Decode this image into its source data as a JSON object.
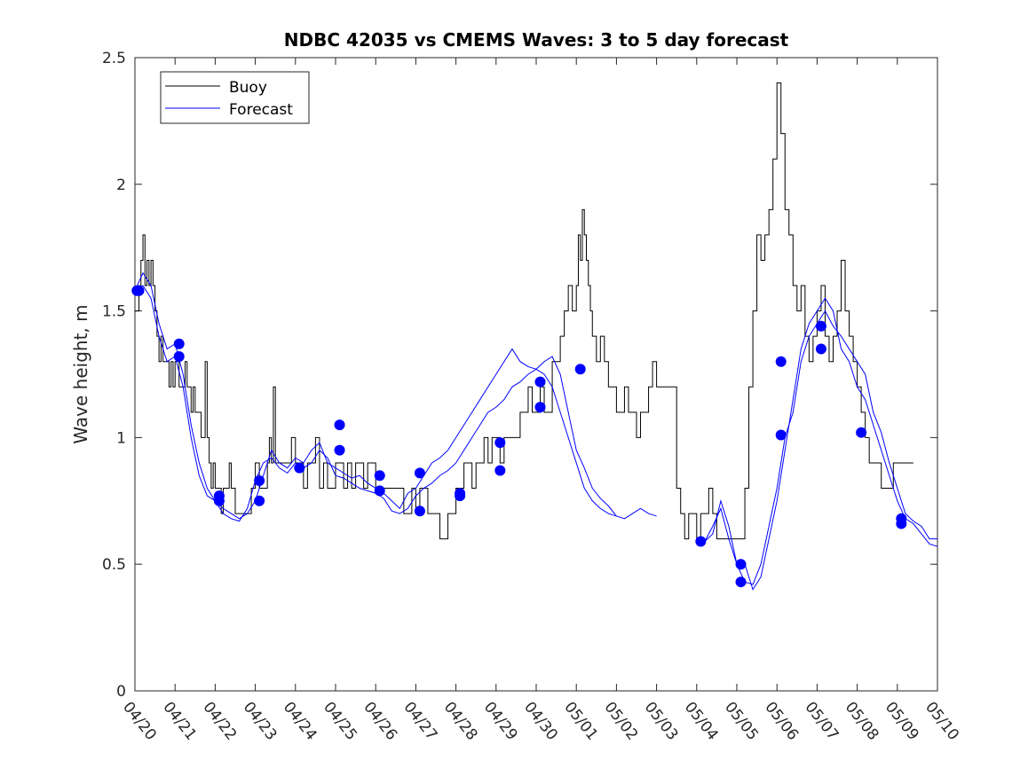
{
  "chart_data": {
    "type": "line",
    "title": "NDBC 42035 vs CMEMS Waves: 3 to 5 day forecast",
    "xlabel": "",
    "ylabel": "Wave height, m",
    "xlim": [
      "04/20",
      "05/10"
    ],
    "ylim": [
      0,
      2.5
    ],
    "x_ticks": [
      "04/20",
      "04/21",
      "04/22",
      "04/23",
      "04/24",
      "04/25",
      "04/26",
      "04/27",
      "04/28",
      "04/29",
      "04/30",
      "05/01",
      "05/02",
      "05/03",
      "05/04",
      "05/05",
      "05/06",
      "05/07",
      "05/08",
      "05/09",
      "05/10"
    ],
    "y_ticks": [
      "0",
      "0.5",
      "1",
      "1.5",
      "2",
      "2.5"
    ],
    "grid": false,
    "legend": {
      "position": "top-left",
      "entries": [
        "Buoy",
        "Forecast"
      ]
    },
    "colors": {
      "buoy": "#000000",
      "forecast": "#0000ff"
    },
    "series": [
      {
        "name": "Buoy",
        "kind": "step",
        "x_day_offset": [
          0,
          0.1,
          0.15,
          0.2,
          0.25,
          0.3,
          0.35,
          0.4,
          0.45,
          0.5,
          0.55,
          0.6,
          0.65,
          0.7,
          0.75,
          0.8,
          0.85,
          0.9,
          0.95,
          1.0,
          1.05,
          1.1,
          1.15,
          1.2,
          1.25,
          1.3,
          1.35,
          1.4,
          1.45,
          1.5,
          1.55,
          1.6,
          1.65,
          1.7,
          1.75,
          1.8,
          1.85,
          1.9,
          1.95,
          2.0,
          2.05,
          2.1,
          2.15,
          2.2,
          2.25,
          2.3,
          2.35,
          2.4,
          2.45,
          2.5,
          2.6,
          2.7,
          2.8,
          2.9,
          3.0,
          3.1,
          3.2,
          3.3,
          3.35,
          3.4,
          3.45,
          3.5,
          3.55,
          3.6,
          3.7,
          3.8,
          3.9,
          4.0,
          4.1,
          4.2,
          4.3,
          4.4,
          4.5,
          4.6,
          4.7,
          4.8,
          4.9,
          5.0,
          5.1,
          5.2,
          5.3,
          5.4,
          5.5,
          5.6,
          5.7,
          5.8,
          5.9,
          6.0,
          6.1,
          6.2,
          6.3,
          6.4,
          6.5,
          6.6,
          6.7,
          6.8,
          6.9,
          7.0,
          7.1,
          7.2,
          7.3,
          7.4,
          7.5,
          7.6,
          7.7,
          7.8,
          7.9,
          8.0,
          8.1,
          8.2,
          8.3,
          8.4,
          8.5,
          8.6,
          8.7,
          8.8,
          8.9,
          9.0,
          9.1,
          9.2,
          9.3,
          9.4,
          9.5,
          9.6,
          9.7,
          9.8,
          9.9,
          10.0,
          10.1,
          10.2,
          10.3,
          10.4,
          10.5,
          10.6,
          10.7,
          10.8,
          10.9,
          11.0,
          11.05,
          11.1,
          11.15,
          11.2,
          11.25,
          11.3,
          11.35,
          11.4,
          11.5,
          11.6,
          11.7,
          11.8,
          11.9,
          12.0,
          12.1,
          12.2,
          12.3,
          12.4,
          12.5,
          12.6,
          12.7,
          12.8,
          12.9,
          13.0,
          13.5,
          13.6,
          13.7,
          13.8,
          13.9,
          14.0,
          14.1,
          14.2,
          14.3,
          14.4,
          14.5,
          14.6,
          14.7,
          14.8,
          14.9,
          15.0,
          15.1,
          15.2,
          15.3,
          15.4,
          15.5,
          15.6,
          15.7,
          15.8,
          15.9,
          16.0,
          16.1,
          16.2,
          16.3,
          16.4,
          16.5,
          16.6,
          16.7,
          16.8,
          16.9,
          17.0,
          17.1,
          17.2,
          17.3,
          17.4,
          17.5,
          17.6,
          17.7,
          17.8,
          17.9,
          18.0,
          18.1,
          18.2,
          18.3,
          18.4,
          18.5,
          18.6,
          18.7,
          18.8,
          18.9,
          19.0,
          19.1,
          19.2,
          19.3,
          19.4
        ],
        "values": [
          1.5,
          1.6,
          1.7,
          1.8,
          1.6,
          1.7,
          1.6,
          1.7,
          1.6,
          1.5,
          1.4,
          1.3,
          1.4,
          1.3,
          1.3,
          1.3,
          1.2,
          1.3,
          1.2,
          1.3,
          1.3,
          1.2,
          1.2,
          1.2,
          1.3,
          1.2,
          1.2,
          1.1,
          1.2,
          1.1,
          1.1,
          1.1,
          1.0,
          1.0,
          1.3,
          1.0,
          0.9,
          0.8,
          0.9,
          0.8,
          0.8,
          0.8,
          0.7,
          0.8,
          0.8,
          0.8,
          0.9,
          0.8,
          0.8,
          0.7,
          0.7,
          0.7,
          0.7,
          0.8,
          0.9,
          0.8,
          0.8,
          0.9,
          1.0,
          0.9,
          1.2,
          0.9,
          0.9,
          0.9,
          0.9,
          0.9,
          1.0,
          0.9,
          0.9,
          0.8,
          0.9,
          0.9,
          1.0,
          0.8,
          0.9,
          0.8,
          0.8,
          0.9,
          0.9,
          0.8,
          0.9,
          0.8,
          0.9,
          0.9,
          0.8,
          0.9,
          0.9,
          0.8,
          0.8,
          0.8,
          0.8,
          0.8,
          0.8,
          0.8,
          0.7,
          0.7,
          0.8,
          0.7,
          0.8,
          0.8,
          0.7,
          0.7,
          0.7,
          0.6,
          0.6,
          0.7,
          0.7,
          0.8,
          0.8,
          0.9,
          0.9,
          0.8,
          0.9,
          0.9,
          1.0,
          0.9,
          1.0,
          1.0,
          0.9,
          1.0,
          1.0,
          1.0,
          1.0,
          1.1,
          1.1,
          1.2,
          1.1,
          1.1,
          1.2,
          1.1,
          1.1,
          1.3,
          1.3,
          1.4,
          1.5,
          1.6,
          1.5,
          1.6,
          1.8,
          1.7,
          1.9,
          1.8,
          1.7,
          1.6,
          1.5,
          1.4,
          1.3,
          1.4,
          1.3,
          1.2,
          1.2,
          1.1,
          1.1,
          1.2,
          1.1,
          1.1,
          1.0,
          1.1,
          1.1,
          1.2,
          1.3,
          1.2,
          0.8,
          0.7,
          0.6,
          0.7,
          0.7,
          0.6,
          0.7,
          0.7,
          0.8,
          0.7,
          0.6,
          0.6,
          0.6,
          0.6,
          0.6,
          0.6,
          0.6,
          0.8,
          1.2,
          1.5,
          1.8,
          1.7,
          1.8,
          1.9,
          2.1,
          2.4,
          2.2,
          1.9,
          1.8,
          1.6,
          1.5,
          1.6,
          1.4,
          1.3,
          1.4,
          1.5,
          1.6,
          1.4,
          1.3,
          1.4,
          1.5,
          1.7,
          1.5,
          1.4,
          1.3,
          1.2,
          1.1,
          1.0,
          0.9,
          0.9,
          0.9,
          0.8,
          0.8,
          0.8,
          0.9,
          0.9,
          0.9,
          0.9,
          0.9
        ]
      },
      {
        "name": "Forecast",
        "kind": "multi-run",
        "runs": [
          {
            "x_day_offset": [
              0,
              0.2,
              0.4,
              0.6,
              0.8,
              1.0,
              1.2,
              1.4,
              1.6,
              1.8,
              2.0,
              2.2,
              2.4,
              2.6,
              2.8,
              3.0,
              3.2,
              3.4,
              3.6,
              3.8,
              4.0,
              4.2,
              4.4,
              4.6,
              4.8,
              5.0,
              5.2,
              5.4,
              5.6,
              5.8,
              6.0,
              6.2,
              6.4,
              6.6,
              6.8,
              7.0,
              7.2,
              7.4,
              7.6,
              7.8,
              8.0,
              8.2,
              8.4,
              8.6,
              8.8,
              9.0,
              9.2,
              9.4,
              9.6,
              9.8,
              10.0,
              10.2,
              10.4,
              10.6,
              10.8,
              11.0,
              11.2,
              11.4,
              11.6,
              11.8,
              12.0,
              12.2,
              12.4,
              12.6,
              12.8,
              13.0
            ],
            "values": [
              1.58,
              1.65,
              1.6,
              1.45,
              1.35,
              1.37,
              1.25,
              1.05,
              0.9,
              0.8,
              0.75,
              0.72,
              0.7,
              0.68,
              0.7,
              0.75,
              0.85,
              0.95,
              0.9,
              0.88,
              0.92,
              0.9,
              0.95,
              0.98,
              0.9,
              0.88,
              0.86,
              0.84,
              0.85,
              0.82,
              0.8,
              0.78,
              0.75,
              0.72,
              0.78,
              0.8,
              0.85,
              0.9,
              0.92,
              0.95,
              1.0,
              1.05,
              1.1,
              1.15,
              1.2,
              1.25,
              1.3,
              1.35,
              1.3,
              1.28,
              1.27,
              1.25,
              1.2,
              1.1,
              1.0,
              0.9,
              0.8,
              0.75,
              0.72,
              0.7,
              0.69,
              0.68,
              0.7,
              0.72,
              0.7,
              0.69
            ]
          },
          {
            "x_day_offset": [
              0,
              0.2,
              0.4,
              0.6,
              0.8,
              1.0,
              1.2,
              1.4,
              1.6,
              1.8,
              2.0,
              2.2,
              2.4,
              2.6,
              2.8,
              3.0,
              3.2,
              3.4,
              3.6,
              3.8,
              4.0,
              4.2,
              4.4,
              4.6,
              4.8,
              5.0,
              5.2,
              5.4,
              5.6,
              5.8,
              6.0,
              6.2,
              6.4,
              6.6,
              6.8,
              7.0,
              7.2,
              7.4,
              7.6,
              7.8,
              8.0,
              8.2,
              8.4,
              8.6,
              8.8,
              9.0,
              9.2,
              9.4,
              9.6,
              9.8,
              10.0,
              10.2,
              10.4,
              10.6,
              10.8,
              11.0,
              11.2,
              11.4,
              11.6,
              11.8,
              12.0
            ],
            "values": [
              1.58,
              1.6,
              1.55,
              1.4,
              1.3,
              1.32,
              1.2,
              1.0,
              0.85,
              0.77,
              0.75,
              0.7,
              0.68,
              0.67,
              0.72,
              0.83,
              0.9,
              0.92,
              0.88,
              0.86,
              0.9,
              0.88,
              0.9,
              0.95,
              0.92,
              0.85,
              0.84,
              0.82,
              0.8,
              0.79,
              0.78,
              0.76,
              0.71,
              0.7,
              0.72,
              0.77,
              0.8,
              0.82,
              0.85,
              0.87,
              0.9,
              0.95,
              1.0,
              1.05,
              1.1,
              1.12,
              1.15,
              1.2,
              1.22,
              1.25,
              1.27,
              1.3,
              1.32,
              1.25,
              1.1,
              0.95,
              0.88,
              0.8,
              0.76,
              0.73,
              0.69
            ]
          },
          {
            "x_day_offset": [
              14.2,
              14.4,
              14.6,
              14.8,
              15.0,
              15.2,
              15.4,
              15.6,
              15.8,
              16.0,
              16.2,
              16.4,
              16.6,
              16.8,
              17.0,
              17.2,
              17.4,
              17.6,
              17.8,
              18.0,
              18.2,
              18.4,
              18.6,
              18.8,
              19.0,
              19.2,
              19.4,
              19.6,
              19.8,
              20.0
            ],
            "values": [
              0.59,
              0.65,
              0.72,
              0.6,
              0.5,
              0.43,
              0.42,
              0.5,
              0.65,
              0.8,
              1.0,
              1.1,
              1.3,
              1.4,
              1.45,
              1.5,
              1.44,
              1.4,
              1.35,
              1.3,
              1.25,
              1.1,
              1.02,
              0.9,
              0.8,
              0.7,
              0.67,
              0.65,
              0.6,
              0.6
            ]
          },
          {
            "x_day_offset": [
              14.2,
              14.4,
              14.6,
              14.8,
              15.0,
              15.2,
              15.4,
              15.6,
              15.8,
              16.0,
              16.2,
              16.4,
              16.6,
              16.8,
              17.0,
              17.2,
              17.4,
              17.6,
              17.8,
              18.0,
              18.2,
              18.4,
              18.6,
              18.8,
              19.0,
              19.2,
              19.4,
              19.6,
              19.8,
              20.0
            ],
            "values": [
              0.59,
              0.62,
              0.75,
              0.65,
              0.5,
              0.5,
              0.4,
              0.45,
              0.6,
              0.75,
              0.95,
              1.15,
              1.35,
              1.45,
              1.5,
              1.55,
              1.5,
              1.35,
              1.3,
              1.2,
              1.15,
              1.05,
              0.95,
              0.85,
              0.75,
              0.68,
              0.66,
              0.62,
              0.58,
              0.57
            ]
          }
        ],
        "markers": [
          {
            "x_day_offset": 0.05,
            "value": 1.58
          },
          {
            "x_day_offset": 0.1,
            "value": 1.58
          },
          {
            "x_day_offset": 1.1,
            "value": 1.37
          },
          {
            "x_day_offset": 1.1,
            "value": 1.32
          },
          {
            "x_day_offset": 2.1,
            "value": 0.77
          },
          {
            "x_day_offset": 2.1,
            "value": 0.75
          },
          {
            "x_day_offset": 3.1,
            "value": 0.83
          },
          {
            "x_day_offset": 3.1,
            "value": 0.75
          },
          {
            "x_day_offset": 4.1,
            "value": 0.88
          },
          {
            "x_day_offset": 5.1,
            "value": 1.05
          },
          {
            "x_day_offset": 5.1,
            "value": 0.95
          },
          {
            "x_day_offset": 6.1,
            "value": 0.85
          },
          {
            "x_day_offset": 6.1,
            "value": 0.79
          },
          {
            "x_day_offset": 7.1,
            "value": 0.86
          },
          {
            "x_day_offset": 7.1,
            "value": 0.71
          },
          {
            "x_day_offset": 8.1,
            "value": 0.78
          },
          {
            "x_day_offset": 8.1,
            "value": 0.77
          },
          {
            "x_day_offset": 9.1,
            "value": 0.98
          },
          {
            "x_day_offset": 9.1,
            "value": 0.87
          },
          {
            "x_day_offset": 10.1,
            "value": 1.22
          },
          {
            "x_day_offset": 10.1,
            "value": 1.12
          },
          {
            "x_day_offset": 11.1,
            "value": 1.27
          },
          {
            "x_day_offset": 14.1,
            "value": 0.59
          },
          {
            "x_day_offset": 15.1,
            "value": 0.5
          },
          {
            "x_day_offset": 15.1,
            "value": 0.43
          },
          {
            "x_day_offset": 16.1,
            "value": 1.3
          },
          {
            "x_day_offset": 16.1,
            "value": 1.01
          },
          {
            "x_day_offset": 17.1,
            "value": 1.44
          },
          {
            "x_day_offset": 17.1,
            "value": 1.35
          },
          {
            "x_day_offset": 18.1,
            "value": 1.02
          },
          {
            "x_day_offset": 19.1,
            "value": 0.68
          },
          {
            "x_day_offset": 19.1,
            "value": 0.66
          }
        ]
      }
    ]
  }
}
